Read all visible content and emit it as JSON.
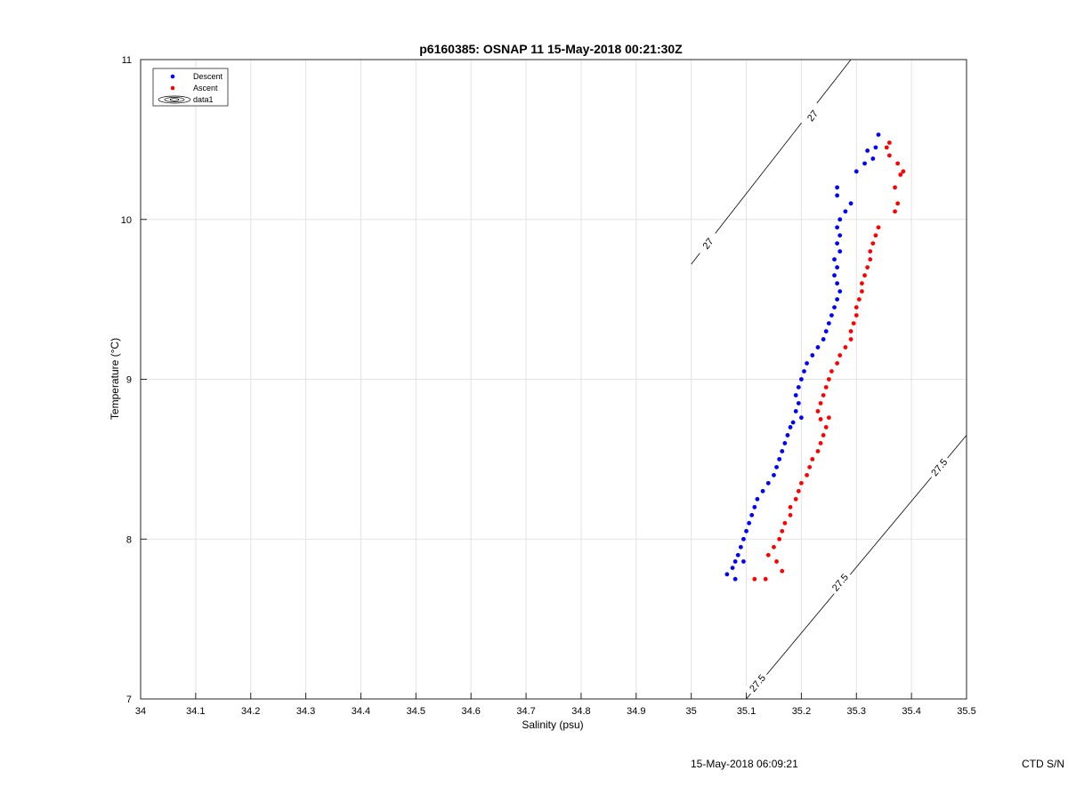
{
  "chart_data": {
    "type": "scatter",
    "title": "p6160385: OSNAP 11 15-May-2018 00:21:30Z",
    "xlabel": "Salinity (psu)",
    "ylabel": "Temperature (°C)",
    "xlim": [
      34,
      35.5
    ],
    "ylim": [
      7,
      11
    ],
    "xticks": [
      "34",
      "34.1",
      "34.2",
      "34.3",
      "34.4",
      "34.5",
      "34.6",
      "34.7",
      "34.8",
      "34.9",
      "35",
      "35.1",
      "35.2",
      "35.3",
      "35.4",
      "35.5"
    ],
    "yticks": [
      "7",
      "8",
      "9",
      "10",
      "11"
    ],
    "grid": true,
    "legend_position": "top-left",
    "legend": [
      "Descent",
      "Ascent",
      "data1"
    ],
    "series": [
      {
        "name": "Descent",
        "color": "#0000ff",
        "points": [
          [
            35.08,
            7.75
          ],
          [
            35.065,
            7.78
          ],
          [
            35.075,
            7.82
          ],
          [
            35.08,
            7.86
          ],
          [
            35.095,
            7.86
          ],
          [
            35.085,
            7.9
          ],
          [
            35.09,
            7.95
          ],
          [
            35.095,
            8.0
          ],
          [
            35.1,
            8.05
          ],
          [
            35.105,
            8.1
          ],
          [
            35.11,
            8.15
          ],
          [
            35.115,
            8.2
          ],
          [
            35.12,
            8.25
          ],
          [
            35.13,
            8.3
          ],
          [
            35.14,
            8.35
          ],
          [
            35.15,
            8.4
          ],
          [
            35.155,
            8.45
          ],
          [
            35.16,
            8.5
          ],
          [
            35.165,
            8.55
          ],
          [
            35.17,
            8.6
          ],
          [
            35.175,
            8.65
          ],
          [
            35.18,
            8.7
          ],
          [
            35.185,
            8.73
          ],
          [
            35.2,
            8.76
          ],
          [
            35.19,
            8.8
          ],
          [
            35.195,
            8.85
          ],
          [
            35.19,
            8.9
          ],
          [
            35.195,
            8.95
          ],
          [
            35.2,
            9.0
          ],
          [
            35.205,
            9.05
          ],
          [
            35.21,
            9.1
          ],
          [
            35.22,
            9.15
          ],
          [
            35.23,
            9.2
          ],
          [
            35.24,
            9.25
          ],
          [
            35.245,
            9.3
          ],
          [
            35.25,
            9.35
          ],
          [
            35.255,
            9.4
          ],
          [
            35.26,
            9.45
          ],
          [
            35.265,
            9.5
          ],
          [
            35.27,
            9.55
          ],
          [
            35.265,
            9.6
          ],
          [
            35.26,
            9.65
          ],
          [
            35.265,
            9.7
          ],
          [
            35.26,
            9.75
          ],
          [
            35.27,
            9.8
          ],
          [
            35.265,
            9.85
          ],
          [
            35.27,
            9.9
          ],
          [
            35.265,
            9.95
          ],
          [
            35.27,
            10.0
          ],
          [
            35.28,
            10.05
          ],
          [
            35.29,
            10.1
          ],
          [
            35.265,
            10.15
          ],
          [
            35.265,
            10.2
          ],
          [
            35.3,
            10.3
          ],
          [
            35.315,
            10.35
          ],
          [
            35.33,
            10.38
          ],
          [
            35.32,
            10.43
          ],
          [
            35.335,
            10.45
          ],
          [
            35.34,
            10.53
          ]
        ]
      },
      {
        "name": "Ascent",
        "color": "#ff0000",
        "points": [
          [
            35.115,
            7.75
          ],
          [
            35.135,
            7.75
          ],
          [
            35.165,
            7.8
          ],
          [
            35.155,
            7.86
          ],
          [
            35.14,
            7.9
          ],
          [
            35.15,
            7.95
          ],
          [
            35.16,
            8.0
          ],
          [
            35.165,
            8.05
          ],
          [
            35.17,
            8.1
          ],
          [
            35.18,
            8.15
          ],
          [
            35.18,
            8.2
          ],
          [
            35.19,
            8.25
          ],
          [
            35.195,
            8.3
          ],
          [
            35.2,
            8.35
          ],
          [
            35.21,
            8.4
          ],
          [
            35.215,
            8.45
          ],
          [
            35.22,
            8.5
          ],
          [
            35.23,
            8.55
          ],
          [
            35.235,
            8.6
          ],
          [
            35.24,
            8.65
          ],
          [
            35.245,
            8.7
          ],
          [
            35.235,
            8.75
          ],
          [
            35.25,
            8.76
          ],
          [
            35.23,
            8.8
          ],
          [
            35.235,
            8.85
          ],
          [
            35.24,
            8.9
          ],
          [
            35.245,
            8.95
          ],
          [
            35.25,
            9.0
          ],
          [
            35.255,
            9.05
          ],
          [
            35.265,
            9.1
          ],
          [
            35.27,
            9.15
          ],
          [
            35.28,
            9.2
          ],
          [
            35.29,
            9.25
          ],
          [
            35.29,
            9.3
          ],
          [
            35.295,
            9.35
          ],
          [
            35.3,
            9.4
          ],
          [
            35.3,
            9.45
          ],
          [
            35.305,
            9.5
          ],
          [
            35.31,
            9.55
          ],
          [
            35.31,
            9.6
          ],
          [
            35.315,
            9.65
          ],
          [
            35.32,
            9.7
          ],
          [
            35.325,
            9.75
          ],
          [
            35.325,
            9.8
          ],
          [
            35.33,
            9.85
          ],
          [
            35.335,
            9.9
          ],
          [
            35.34,
            9.95
          ],
          [
            35.37,
            10.05
          ],
          [
            35.375,
            10.1
          ],
          [
            35.37,
            10.2
          ],
          [
            35.38,
            10.28
          ],
          [
            35.385,
            10.3
          ],
          [
            35.375,
            10.35
          ],
          [
            35.36,
            10.4
          ],
          [
            35.355,
            10.45
          ],
          [
            35.36,
            10.48
          ]
        ]
      }
    ],
    "isopycnals": [
      {
        "label": "27",
        "points": [
          [
            35.0,
            9.72
          ],
          [
            35.29,
            11.0
          ]
        ],
        "label_positions": [
          [
            35.03,
            9.85
          ],
          [
            35.22,
            10.65
          ]
        ]
      },
      {
        "label": "27.5",
        "points": [
          [
            35.1,
            7.0
          ],
          [
            35.5,
            8.65
          ]
        ],
        "label_positions": [
          [
            35.12,
            7.1
          ],
          [
            35.27,
            7.73
          ],
          [
            35.45,
            8.45
          ]
        ]
      }
    ]
  },
  "footer": {
    "timestamp": "15-May-2018 06:09:21",
    "serial": "CTD S/N"
  }
}
